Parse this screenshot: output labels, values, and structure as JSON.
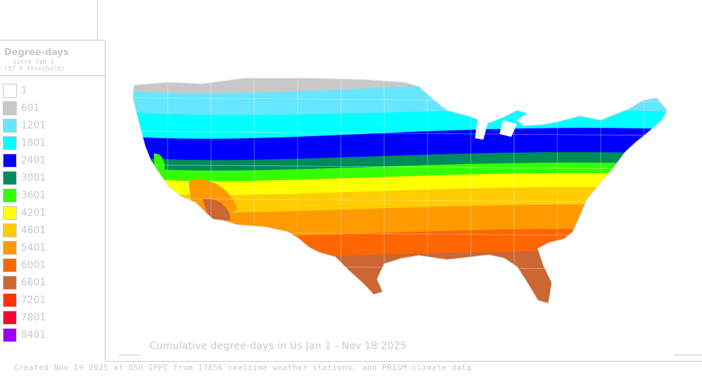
{
  "legend": {
    "title": "Degree-days",
    "subtitle_line1": "since Jan 1",
    "subtitle_line2": "(57 F threshold)",
    "items": [
      {
        "label": "1",
        "color": "#ffffff"
      },
      {
        "label": "601",
        "color": "#c8c8c8"
      },
      {
        "label": "1201",
        "color": "#66e6ff"
      },
      {
        "label": "1801",
        "color": "#00ffff"
      },
      {
        "label": "2401",
        "color": "#0000ff"
      },
      {
        "label": "3001",
        "color": "#008b5a"
      },
      {
        "label": "3601",
        "color": "#33ff00"
      },
      {
        "label": "4201",
        "color": "#ffff00"
      },
      {
        "label": "4801",
        "color": "#ffcc00"
      },
      {
        "label": "5401",
        "color": "#ff9900"
      },
      {
        "label": "6001",
        "color": "#ff6600"
      },
      {
        "label": "6601",
        "color": "#cc6633"
      },
      {
        "label": "7201",
        "color": "#ff3300"
      },
      {
        "label": "7801",
        "color": "#ff0033"
      },
      {
        "label": "8401",
        "color": "#9900ff"
      }
    ]
  },
  "map": {
    "caption": "Cumulative degree-days in Us  Jan 1 - Nov 18 2025",
    "zones_order": [
      "#c8c8c8",
      "#66e6ff",
      "#00ffff",
      "#0000ff",
      "#008b5a",
      "#33ff00",
      "#ffff00",
      "#ffcc00",
      "#ff9900",
      "#ff6600",
      "#cc6633"
    ]
  },
  "footer": {
    "credit": "Created Nov 19 2025 at OSU IPPC from 17856 realtime weather stations, and PRISM climate data"
  }
}
